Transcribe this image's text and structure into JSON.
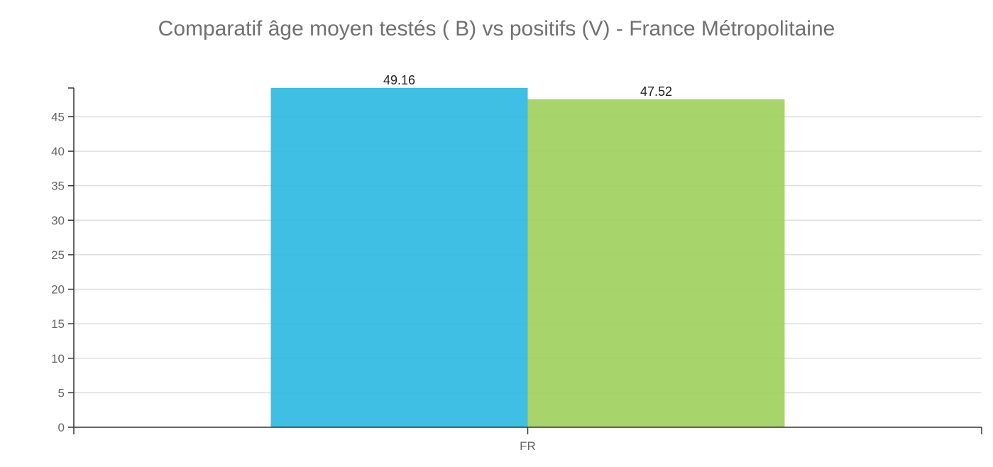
{
  "chart_data": {
    "type": "bar",
    "title": "Comparatif âge moyen testés ( B) vs positifs  (V) - France Métropolitaine",
    "categories": [
      "FR"
    ],
    "series": [
      {
        "values": [
          49.16
        ],
        "color": "#29b8e0"
      },
      {
        "values": [
          47.52
        ],
        "color": "#9fcf5c"
      }
    ],
    "value_labels": [
      "49.16",
      "47.52"
    ],
    "ylim": [
      0,
      49.16
    ],
    "yticks": [
      0,
      5,
      10,
      15,
      20,
      25,
      30,
      35,
      40,
      45
    ],
    "grid": true,
    "xlabel": "",
    "ylabel": ""
  }
}
